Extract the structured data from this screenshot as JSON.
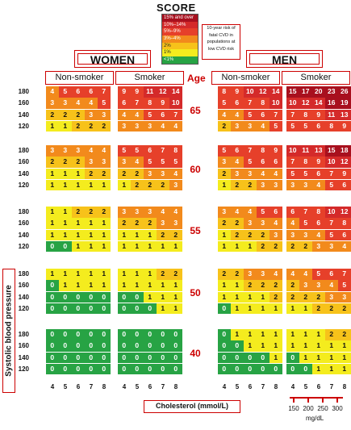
{
  "logo": "SCORE",
  "legend": {
    "items": [
      {
        "label": "15% and over",
        "color": "#a8101e"
      },
      {
        "label": "10%–14%",
        "color": "#d42a2a"
      },
      {
        "label": "5%–9%",
        "color": "#e6402a"
      },
      {
        "label": "3%–4%",
        "color": "#f28a1c"
      },
      {
        "label": "2%",
        "color": "#f7c21a"
      },
      {
        "label": "1%",
        "color": "#f4ec1e"
      },
      {
        "label": "<1%",
        "color": "#27a344"
      }
    ]
  },
  "risk_note": [
    "10-year risk of",
    "fatal CVD in",
    "populations at",
    "low CVD risk"
  ],
  "labels": {
    "women": "WOMEN",
    "men": "MEN",
    "non_smoker": "Non-smoker",
    "smoker": "Smoker",
    "age": "Age",
    "y_axis": "Systolic blood pressure",
    "x_axis": "Cholesterol (mmol/L)",
    "mgdl_unit": "mg/dL"
  },
  "mgdl_ticks": [
    "150",
    "200",
    "250",
    "300"
  ],
  "colors": {
    "g": "#27a344",
    "y": "#f4ec1e",
    "o": "#f7c21a",
    "or": "#f28a1c",
    "r": "#e6402a",
    "dr": "#d42a2a",
    "dd": "#a8101e",
    "accent": "#cc0000"
  },
  "chart_data": {
    "type": "heatmap",
    "title": "SCORE",
    "xlabel": "Cholesterol (mmol/L)",
    "ylabel": "Systolic blood pressure",
    "cholesterol": [
      4,
      5,
      6,
      7,
      8
    ],
    "sbp": [
      180,
      160,
      140,
      120
    ],
    "ages": [
      {
        "age": "65",
        "women_non_smoker": [
          [
            4,
            5,
            6,
            6,
            7
          ],
          [
            3,
            3,
            4,
            4,
            5
          ],
          [
            2,
            2,
            2,
            3,
            3
          ],
          [
            1,
            1,
            2,
            2,
            2
          ]
        ],
        "women_smoker": [
          [
            9,
            9,
            11,
            12,
            14
          ],
          [
            6,
            7,
            8,
            9,
            10
          ],
          [
            4,
            4,
            5,
            6,
            7
          ],
          [
            3,
            3,
            3,
            4,
            4
          ]
        ],
        "men_non_smoker": [
          [
            8,
            9,
            10,
            12,
            14
          ],
          [
            5,
            6,
            7,
            8,
            10
          ],
          [
            4,
            4,
            5,
            6,
            7
          ],
          [
            2,
            3,
            3,
            4,
            5
          ]
        ],
        "men_smoker": [
          [
            15,
            17,
            20,
            23,
            26
          ],
          [
            10,
            12,
            14,
            16,
            19
          ],
          [
            7,
            8,
            9,
            11,
            13
          ],
          [
            5,
            5,
            6,
            8,
            9
          ]
        ]
      },
      {
        "age": "60",
        "women_non_smoker": [
          [
            3,
            3,
            3,
            4,
            4
          ],
          [
            2,
            2,
            2,
            3,
            3
          ],
          [
            1,
            1,
            1,
            2,
            2
          ],
          [
            1,
            1,
            1,
            1,
            1
          ]
        ],
        "women_smoker": [
          [
            5,
            5,
            6,
            7,
            8
          ],
          [
            3,
            4,
            5,
            5,
            5
          ],
          [
            2,
            2,
            3,
            3,
            4
          ],
          [
            1,
            2,
            2,
            2,
            3
          ]
        ],
        "men_non_smoker": [
          [
            5,
            6,
            7,
            8,
            9
          ],
          [
            3,
            4,
            5,
            6,
            6
          ],
          [
            2,
            3,
            3,
            4,
            4
          ],
          [
            1,
            2,
            2,
            3,
            3
          ]
        ],
        "men_smoker": [
          [
            10,
            11,
            13,
            15,
            18
          ],
          [
            7,
            8,
            9,
            10,
            12
          ],
          [
            5,
            5,
            6,
            7,
            9
          ],
          [
            3,
            3,
            4,
            5,
            6
          ]
        ]
      },
      {
        "age": "55",
        "women_non_smoker": [
          [
            1,
            1,
            2,
            2,
            2
          ],
          [
            1,
            1,
            1,
            1,
            1
          ],
          [
            1,
            1,
            1,
            1,
            1
          ],
          [
            0,
            0,
            1,
            1,
            1
          ]
        ],
        "women_smoker": [
          [
            3,
            3,
            3,
            4,
            4
          ],
          [
            2,
            2,
            2,
            3,
            3
          ],
          [
            1,
            1,
            1,
            2,
            2
          ],
          [
            1,
            1,
            1,
            1,
            1
          ]
        ],
        "men_non_smoker": [
          [
            3,
            4,
            4,
            5,
            6
          ],
          [
            2,
            2,
            3,
            3,
            4
          ],
          [
            1,
            2,
            2,
            2,
            3
          ],
          [
            1,
            1,
            1,
            2,
            2
          ]
        ],
        "men_smoker": [
          [
            6,
            7,
            8,
            10,
            12
          ],
          [
            4,
            5,
            6,
            7,
            8
          ],
          [
            3,
            3,
            4,
            5,
            6
          ],
          [
            2,
            2,
            3,
            3,
            4
          ]
        ]
      },
      {
        "age": "50",
        "women_non_smoker": [
          [
            1,
            1,
            1,
            1,
            1
          ],
          [
            0,
            1,
            1,
            1,
            1
          ],
          [
            0,
            0,
            0,
            0,
            0
          ],
          [
            0,
            0,
            0,
            0,
            0
          ]
        ],
        "women_smoker": [
          [
            1,
            1,
            1,
            2,
            2
          ],
          [
            1,
            1,
            1,
            1,
            1
          ],
          [
            0,
            0,
            1,
            1,
            1
          ],
          [
            0,
            0,
            0,
            1,
            1
          ]
        ],
        "men_non_smoker": [
          [
            2,
            2,
            3,
            3,
            4
          ],
          [
            1,
            1,
            2,
            2,
            2
          ],
          [
            1,
            1,
            1,
            1,
            2
          ],
          [
            0,
            1,
            1,
            1,
            1
          ]
        ],
        "men_smoker": [
          [
            4,
            4,
            5,
            6,
            7
          ],
          [
            2,
            3,
            3,
            4,
            5
          ],
          [
            2,
            2,
            2,
            3,
            3
          ],
          [
            1,
            1,
            2,
            2,
            2
          ]
        ]
      },
      {
        "age": "40",
        "women_non_smoker": [
          [
            0,
            0,
            0,
            0,
            0
          ],
          [
            0,
            0,
            0,
            0,
            0
          ],
          [
            0,
            0,
            0,
            0,
            0
          ],
          [
            0,
            0,
            0,
            0,
            0
          ]
        ],
        "women_smoker": [
          [
            0,
            0,
            0,
            0,
            0
          ],
          [
            0,
            0,
            0,
            0,
            0
          ],
          [
            0,
            0,
            0,
            0,
            0
          ],
          [
            0,
            0,
            0,
            0,
            0
          ]
        ],
        "men_non_smoker": [
          [
            0,
            1,
            1,
            1,
            1
          ],
          [
            0,
            0,
            1,
            1,
            1
          ],
          [
            0,
            0,
            0,
            0,
            1
          ],
          [
            0,
            0,
            0,
            0,
            0
          ]
        ],
        "men_smoker": [
          [
            1,
            1,
            1,
            2,
            2
          ],
          [
            1,
            1,
            1,
            1,
            1
          ],
          [
            0,
            1,
            1,
            1,
            1
          ],
          [
            0,
            0,
            1,
            1,
            1
          ]
        ]
      }
    ]
  }
}
